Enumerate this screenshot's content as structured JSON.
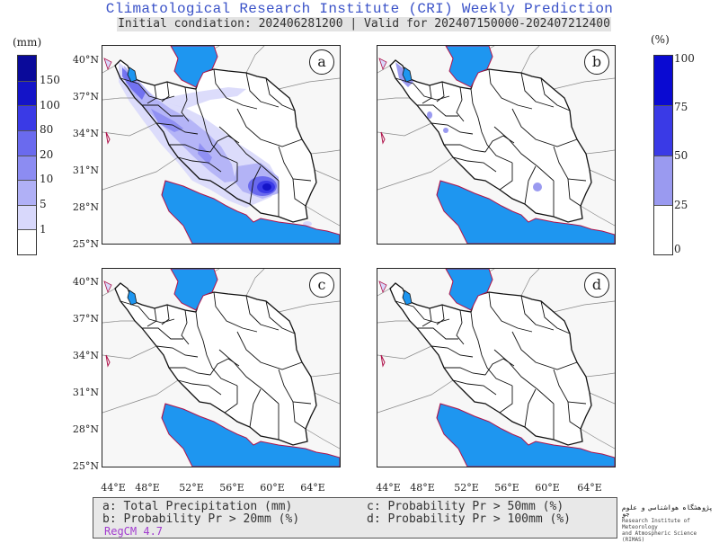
{
  "title": "Climatological Research Institute (CRI) Weekly Prediction",
  "subtitle": "Initial condiation: 202406281200 | Valid for 202407150000-202407212400",
  "panels": [
    {
      "letter": "a",
      "description": "Total Precipitation (mm)"
    },
    {
      "letter": "b",
      "description": "Probability Pr > 20mm (%)"
    },
    {
      "letter": "c",
      "description": "Probability Pr > 50mm (%)"
    },
    {
      "letter": "d",
      "description": "Probability Pr > 100mm (%)"
    }
  ],
  "latitude_labels": [
    "40°N",
    "37°N",
    "34°N",
    "31°N",
    "28°N",
    "25°N"
  ],
  "longitude_labels": [
    "44°E",
    "48°E",
    "52°E",
    "56°E",
    "60°E",
    "64°E"
  ],
  "precip_colorbar": {
    "unit": "(mm)",
    "ticks": [
      "150",
      "100",
      "80",
      "20",
      "10",
      "5",
      "1"
    ],
    "colors": [
      "#0a0a9a",
      "#1414c8",
      "#3a3ae6",
      "#6a6aee",
      "#8c8cf2",
      "#b0b0f6",
      "#d8d8fb",
      "#ffffff"
    ]
  },
  "prob_colorbar": {
    "unit": "(%)",
    "ticks": [
      "100",
      "75",
      "50",
      "25",
      "0"
    ],
    "colors": [
      "#0a0ad2",
      "#3a3ae6",
      "#9a9af0",
      "#ffffff"
    ]
  },
  "legend": {
    "a": "a: Total Precipitation (mm)",
    "b": "b: Probability Pr > 20mm (%)",
    "c": "c: Probability Pr > 50mm (%)",
    "d": "d: Probability Pr > 100mm (%)",
    "model": "RegCM 4.7"
  },
  "logo": {
    "persian": "پژوهشگاه هواشناسی و علوم جو",
    "line1": "Research Institute of Meteorology",
    "line2": "and Atmospheric Science (RIMAS)"
  },
  "colors": {
    "water": "#1e96f0",
    "coast": "#b0154c",
    "border": "#111111",
    "title": "#3a52c8"
  }
}
